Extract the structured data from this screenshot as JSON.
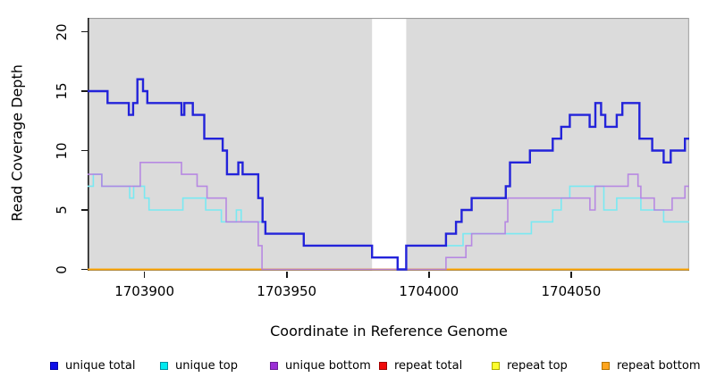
{
  "figure": {
    "x_axis_label": "Coordinate in Reference Genome",
    "y_axis_label": "Read Coverage Depth"
  },
  "chart_data": {
    "type": "line",
    "subtype": "step-after",
    "title": "",
    "xlabel": "Coordinate in Reference Genome",
    "ylabel": "Read Coverage Depth",
    "x_range": [
      1703880,
      1704091.5
    ],
    "y_range": [
      0,
      21.2
    ],
    "x_ticks": [
      1703900,
      1703950,
      1704000,
      1704050
    ],
    "y_ticks": [
      0,
      5,
      10,
      15,
      20
    ],
    "grid": "off",
    "plot_bg_color": "#DBDBDB",
    "gap_region": {
      "x_start": 1703980,
      "x_end": 1703992,
      "color": "#FFFFFF"
    },
    "legend_position": "bottom",
    "series": [
      {
        "name": "unique total",
        "color": "#2323DA",
        "line_width": 2.4,
        "opacity": 1,
        "steps": [
          [
            1703880,
            15
          ],
          [
            1703887,
            14
          ],
          [
            1703894.5,
            13
          ],
          [
            1703896,
            14
          ],
          [
            1703897.5,
            16
          ],
          [
            1703899.5,
            15
          ],
          [
            1703901,
            14
          ],
          [
            1703913,
            13
          ],
          [
            1703914,
            14
          ],
          [
            1703917,
            13
          ],
          [
            1703921,
            11
          ],
          [
            1703927.5,
            10
          ],
          [
            1703929,
            8
          ],
          [
            1703933,
            9
          ],
          [
            1703934.5,
            8
          ],
          [
            1703940,
            6
          ],
          [
            1703941.5,
            4
          ],
          [
            1703942.5,
            3
          ],
          [
            1703956,
            2
          ],
          [
            1703980,
            1
          ],
          [
            1703989,
            0
          ],
          [
            1703992,
            2
          ],
          [
            1704006,
            3
          ],
          [
            1704009.5,
            4
          ],
          [
            1704011.5,
            5
          ],
          [
            1704015,
            6
          ],
          [
            1704027,
            7
          ],
          [
            1704028.5,
            9
          ],
          [
            1704035.5,
            10
          ],
          [
            1704043.5,
            11
          ],
          [
            1704046.5,
            12
          ],
          [
            1704049.5,
            13
          ],
          [
            1704056.5,
            12
          ],
          [
            1704058.5,
            14
          ],
          [
            1704060.5,
            13
          ],
          [
            1704062,
            12
          ],
          [
            1704066,
            13
          ],
          [
            1704068,
            14
          ],
          [
            1704074,
            11
          ],
          [
            1704078.5,
            10
          ],
          [
            1704082.5,
            9
          ],
          [
            1704085,
            10
          ],
          [
            1704090,
            11
          ]
        ]
      },
      {
        "name": "unique top",
        "color": "#79E9F2",
        "line_width": 1.6,
        "opacity": 1,
        "steps": [
          [
            1703880,
            7
          ],
          [
            1703882,
            8
          ],
          [
            1703885,
            7
          ],
          [
            1703894.8,
            6
          ],
          [
            1703896.2,
            7
          ],
          [
            1703900,
            6
          ],
          [
            1703901.6,
            5
          ],
          [
            1703913.5,
            6
          ],
          [
            1703921.5,
            5
          ],
          [
            1703927,
            4
          ],
          [
            1703932.3,
            5
          ],
          [
            1703934,
            4
          ],
          [
            1703942.5,
            3
          ],
          [
            1703956,
            2
          ],
          [
            1703980,
            1
          ],
          [
            1703989,
            0
          ],
          [
            1703992,
            2
          ],
          [
            1704012,
            3
          ],
          [
            1704036,
            4
          ],
          [
            1704043.5,
            5
          ],
          [
            1704046.5,
            6
          ],
          [
            1704049.5,
            7
          ],
          [
            1704061.5,
            5
          ],
          [
            1704066,
            6
          ],
          [
            1704074.5,
            5
          ],
          [
            1704082.5,
            4
          ]
        ]
      },
      {
        "name": "unique bottom",
        "color": "#B27FE2",
        "line_width": 1.6,
        "opacity": 0.9,
        "steps": [
          [
            1703880,
            8
          ],
          [
            1703885,
            7
          ],
          [
            1703898.5,
            9
          ],
          [
            1703913,
            8
          ],
          [
            1703918.5,
            7
          ],
          [
            1703922,
            6
          ],
          [
            1703928.7,
            4
          ],
          [
            1703940,
            2
          ],
          [
            1703941.3,
            0
          ],
          [
            1704006,
            1
          ],
          [
            1704013,
            2
          ],
          [
            1704015,
            3
          ],
          [
            1704026.8,
            4
          ],
          [
            1704027.7,
            6
          ],
          [
            1704056.6,
            5
          ],
          [
            1704058.4,
            7
          ],
          [
            1704070,
            8
          ],
          [
            1704073.5,
            7
          ],
          [
            1704074.5,
            6
          ],
          [
            1704079.2,
            5
          ],
          [
            1704085.5,
            6
          ],
          [
            1704090,
            7
          ]
        ]
      },
      {
        "name": "repeat total",
        "color": "#DD2222",
        "line_width": 1.6,
        "opacity": 1,
        "steps": [
          [
            1703880,
            0
          ]
        ]
      },
      {
        "name": "repeat top",
        "color": "#EEEE22",
        "line_width": 1.6,
        "opacity": 1,
        "steps": [
          [
            1703880,
            0
          ]
        ]
      },
      {
        "name": "repeat bottom",
        "color": "#FFA500",
        "line_width": 1.7,
        "opacity": 1,
        "steps": [
          [
            1703880,
            0
          ]
        ]
      }
    ]
  },
  "legend": {
    "items": [
      {
        "label": "unique total",
        "fill": "#0D0DE8",
        "border": "#0000A8"
      },
      {
        "label": "unique top",
        "fill": "#00EAF0",
        "border": "#008FA0"
      },
      {
        "label": "unique bottom",
        "fill": "#9B2FD6",
        "border": "#6A1F96"
      },
      {
        "label": "repeat total",
        "fill": "#F00A0A",
        "border": "#A00000"
      },
      {
        "label": "repeat top",
        "fill": "#FDFD2E",
        "border": "#ACAC00"
      },
      {
        "label": "repeat bottom",
        "fill": "#FFA51E",
        "border": "#B37400"
      }
    ]
  }
}
